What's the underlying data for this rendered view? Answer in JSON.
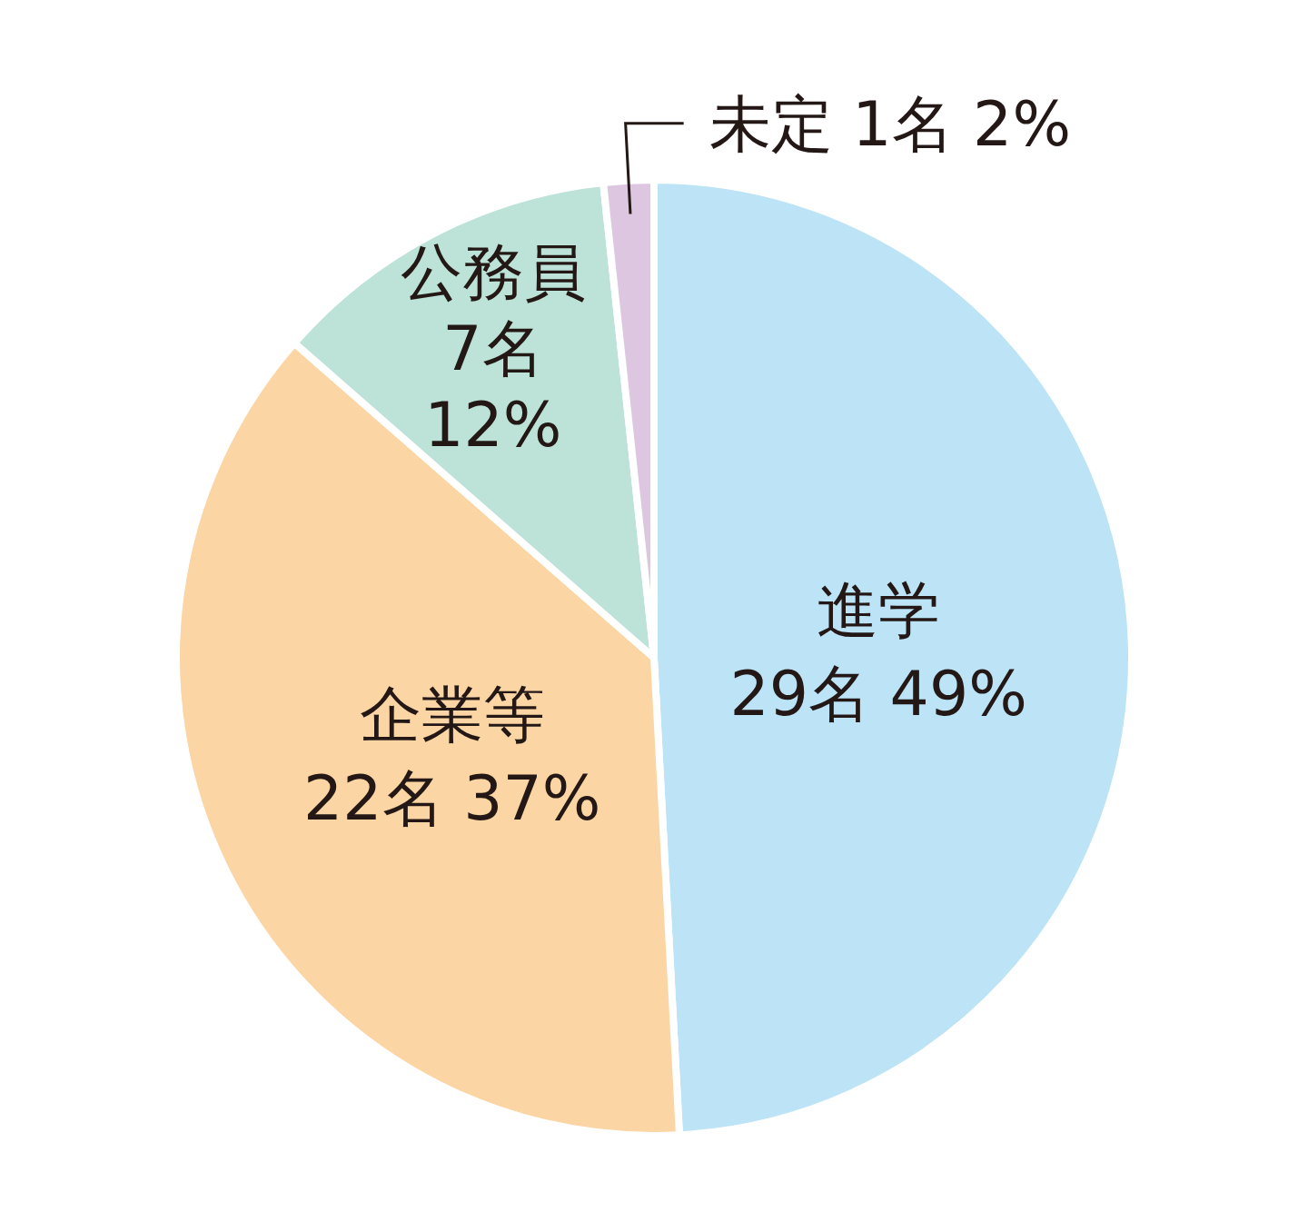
{
  "chart_data": {
    "type": "pie",
    "categories": [
      "進学",
      "企業等",
      "公務員",
      "未定"
    ],
    "values": [
      29,
      22,
      7,
      1
    ],
    "value_labels": [
      "29名 49%",
      "22名 37%",
      "7名 12%",
      "1名 2%"
    ],
    "colors": [
      "#bde3f7",
      "#fbd5a3",
      "#bde3d8",
      "#dcc6e0"
    ]
  }
}
